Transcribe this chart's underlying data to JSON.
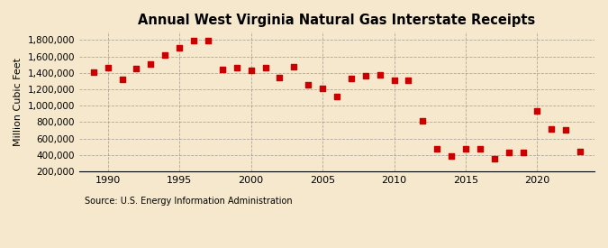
{
  "title": "Annual West Virginia Natural Gas Interstate Receipts",
  "ylabel": "Million Cubic Feet",
  "source": "Source: U.S. Energy Information Administration",
  "bg_color": "#f5e8cc",
  "marker_color": "#cc0000",
  "years": [
    1989,
    1990,
    1991,
    1992,
    1993,
    1994,
    1995,
    1996,
    1997,
    1998,
    1999,
    2000,
    2001,
    2002,
    2003,
    2004,
    2005,
    2006,
    2007,
    2008,
    2009,
    2010,
    2011,
    2012,
    2013,
    2014,
    2015,
    2016,
    2017,
    2018,
    2019,
    2020,
    2021,
    2022,
    2023
  ],
  "values": [
    1410000,
    1460000,
    1320000,
    1450000,
    1510000,
    1620000,
    1710000,
    1790000,
    1790000,
    1440000,
    1460000,
    1430000,
    1460000,
    1340000,
    1470000,
    1260000,
    1210000,
    1110000,
    1330000,
    1360000,
    1380000,
    1310000,
    1310000,
    810000,
    470000,
    390000,
    470000,
    470000,
    350000,
    430000,
    430000,
    940000,
    720000,
    710000,
    440000
  ],
  "ylim": [
    200000,
    1900000
  ],
  "yticks": [
    200000,
    400000,
    600000,
    800000,
    1000000,
    1200000,
    1400000,
    1600000,
    1800000
  ],
  "xlim": [
    1988,
    2024
  ],
  "xticks": [
    1990,
    1995,
    2000,
    2005,
    2010,
    2015,
    2020
  ]
}
